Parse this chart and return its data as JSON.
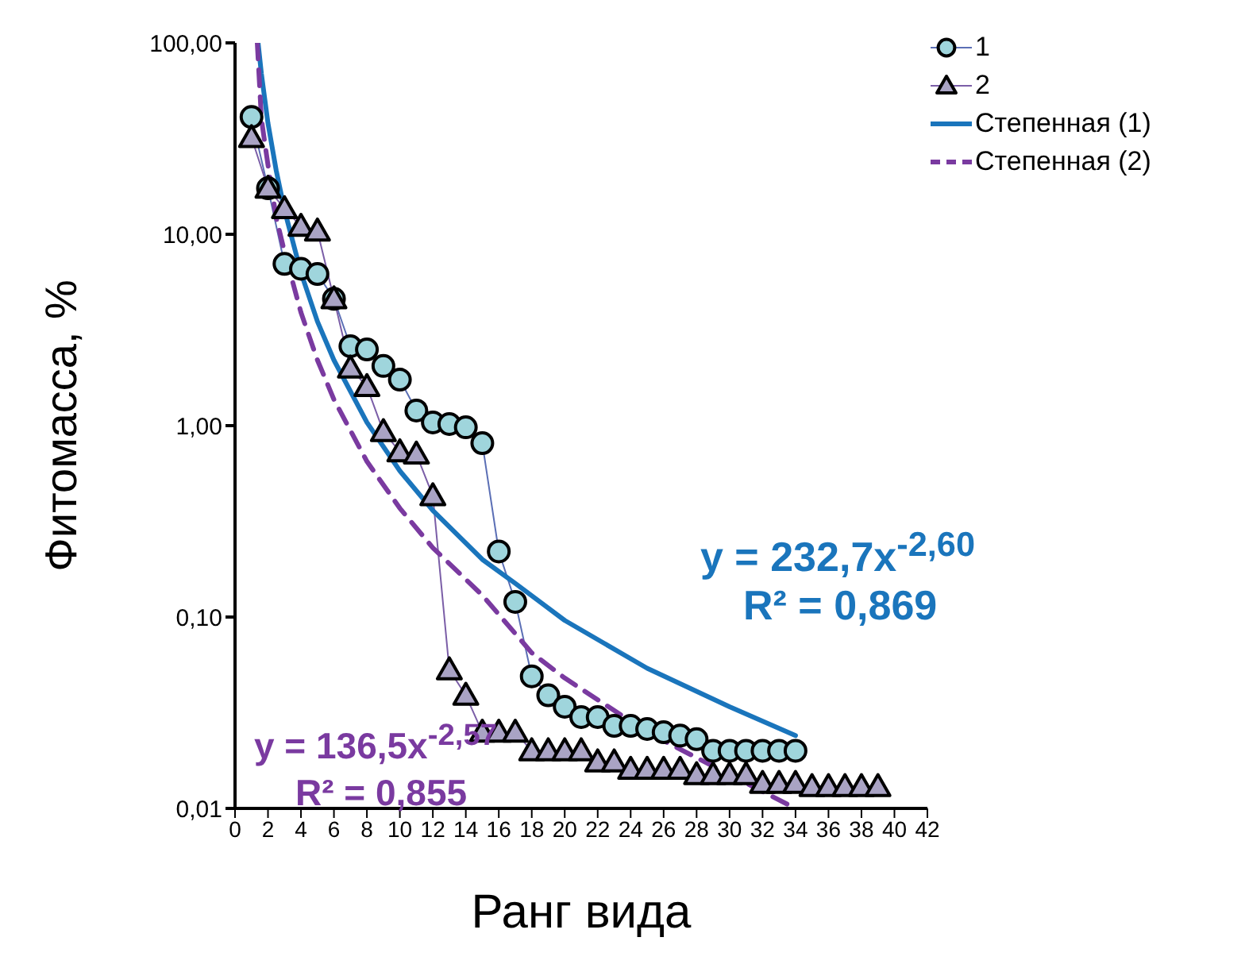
{
  "chart_data": {
    "type": "line",
    "xlabel": "Ранг вида",
    "ylabel": "Фитомасса,   %",
    "log": "y",
    "xlim": [
      0,
      42
    ],
    "xticks": [
      0,
      2,
      4,
      6,
      8,
      10,
      12,
      14,
      16,
      18,
      20,
      22,
      24,
      26,
      28,
      30,
      32,
      34,
      36,
      38,
      40,
      42
    ],
    "ylim": [
      0.01,
      100
    ],
    "yticks": [
      {
        "value": 0.01,
        "label": "0,01"
      },
      {
        "value": 0.1,
        "label": "0,10"
      },
      {
        "value": 1,
        "label": "1,00"
      },
      {
        "value": 10,
        "label": "10,00"
      },
      {
        "value": 100,
        "label": "100,00"
      }
    ],
    "grid": false,
    "legend": "top right",
    "series": [
      {
        "name": "1",
        "marker": "circle",
        "color": "#9fd5dc",
        "x": [
          1,
          2,
          3,
          4,
          5,
          6,
          7,
          8,
          9,
          10,
          11,
          12,
          13,
          14,
          15,
          16,
          17,
          18,
          19,
          20,
          21,
          22,
          23,
          24,
          25,
          26,
          27,
          28,
          29,
          30,
          31,
          32,
          33,
          34
        ],
        "values": [
          41,
          17.4,
          7.0,
          6.6,
          6.2,
          4.6,
          2.6,
          2.5,
          2.05,
          1.74,
          1.2,
          1.04,
          1.02,
          0.98,
          0.81,
          0.22,
          0.12,
          0.049,
          0.039,
          0.034,
          0.03,
          0.03,
          0.027,
          0.027,
          0.026,
          0.025,
          0.024,
          0.023,
          0.02,
          0.02,
          0.02,
          0.02,
          0.02,
          0.02
        ]
      },
      {
        "name": "2",
        "marker": "triangle",
        "color": "#a9a3c4",
        "x": [
          1,
          2,
          3,
          4,
          5,
          6,
          7,
          8,
          9,
          10,
          11,
          12,
          13,
          14,
          15,
          16,
          17,
          18,
          19,
          20,
          21,
          22,
          23,
          24,
          25,
          26,
          27,
          28,
          29,
          30,
          31,
          32,
          33,
          34,
          35,
          36,
          37,
          38,
          39
        ],
        "values": [
          32,
          17.4,
          13.6,
          11,
          10.4,
          4.6,
          2.0,
          1.6,
          0.93,
          0.73,
          0.71,
          0.43,
          0.053,
          0.039,
          0.025,
          0.025,
          0.025,
          0.02,
          0.02,
          0.02,
          0.02,
          0.0175,
          0.0175,
          0.016,
          0.016,
          0.016,
          0.016,
          0.015,
          0.015,
          0.015,
          0.015,
          0.0135,
          0.0135,
          0.0135,
          0.013,
          0.013,
          0.013,
          0.013,
          0.013
        ]
      },
      {
        "name": "Степенная (1)",
        "marker": "none",
        "line_style": "solid",
        "color": "#1a75bc",
        "x": [
          1.4,
          1.6,
          2,
          2.5,
          3,
          4,
          5,
          6,
          8,
          10,
          12,
          15,
          17,
          20,
          25,
          30,
          34
        ],
        "values": [
          100,
          69,
          38,
          21.5,
          13.4,
          6.3,
          3.5,
          2.2,
          1.04,
          0.58,
          0.36,
          0.2,
          0.15,
          0.096,
          0.054,
          0.034,
          0.024
        ]
      },
      {
        "name": "Степенная (2)",
        "marker": "none",
        "line_style": "dashed",
        "color": "#7a3aa0",
        "x": [
          1.35,
          1.6,
          2,
          2.5,
          3,
          4,
          5,
          6,
          8,
          10,
          12,
          15,
          18,
          20,
          25,
          30,
          34
        ],
        "values": [
          100,
          40,
          23,
          12.2,
          8.1,
          3.9,
          2.2,
          1.37,
          0.65,
          0.37,
          0.23,
          0.13,
          0.065,
          0.048,
          0.025,
          0.015,
          0.01
        ]
      }
    ],
    "annotations": [
      "y = 232,7x$^{-2,60}$",
      "R² = 0,869",
      "y = 136,5x$^{-2,57}$",
      "R² = 0,855"
    ]
  }
}
